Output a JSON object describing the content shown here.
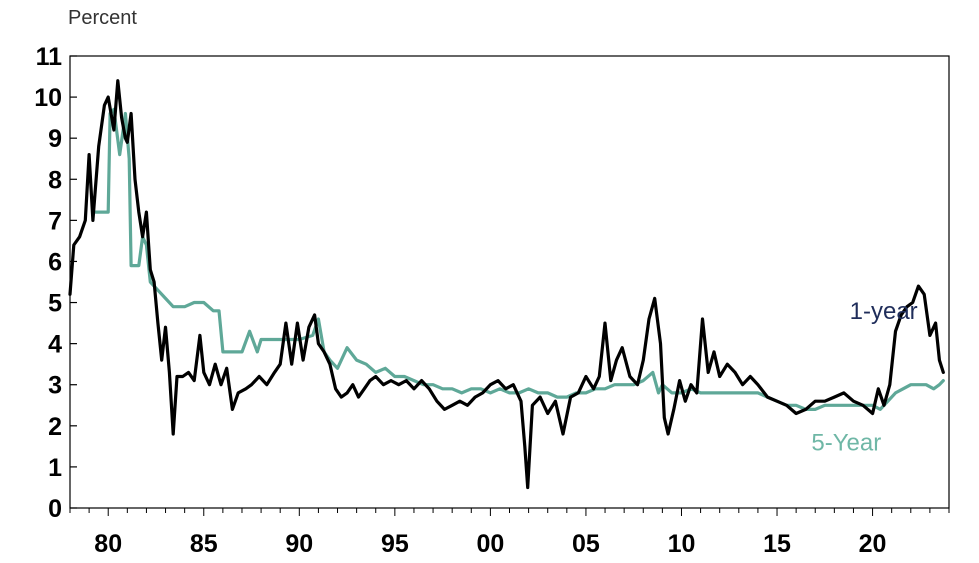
{
  "chart_data": {
    "type": "line",
    "title": "",
    "units_label": "Percent",
    "xlabel": "",
    "ylabel": "",
    "xlim": [
      1978,
      2024
    ],
    "ylim": [
      0,
      11
    ],
    "y_ticks": [
      0,
      1,
      2,
      3,
      4,
      5,
      6,
      7,
      8,
      9,
      10,
      11
    ],
    "x_ticks": [
      {
        "value": 1980,
        "label": "80"
      },
      {
        "value": 1985,
        "label": "85"
      },
      {
        "value": 1990,
        "label": "90"
      },
      {
        "value": 1995,
        "label": "95"
      },
      {
        "value": 2000,
        "label": "00"
      },
      {
        "value": 2005,
        "label": "05"
      },
      {
        "value": 2010,
        "label": "10"
      },
      {
        "value": 2015,
        "label": "15"
      },
      {
        "value": 2020,
        "label": "20"
      }
    ],
    "grid": false,
    "series": [
      {
        "name": "1-year",
        "color": "#000000",
        "label_color": "#1f2d5a",
        "points": [
          [
            1978.0,
            5.2
          ],
          [
            1978.2,
            6.4
          ],
          [
            1978.5,
            6.6
          ],
          [
            1978.8,
            7.0
          ],
          [
            1979.0,
            8.6
          ],
          [
            1979.2,
            7.0
          ],
          [
            1979.5,
            8.8
          ],
          [
            1979.8,
            9.8
          ],
          [
            1980.0,
            10.0
          ],
          [
            1980.3,
            9.2
          ],
          [
            1980.5,
            10.4
          ],
          [
            1980.7,
            9.5
          ],
          [
            1980.9,
            9.0
          ],
          [
            1981.0,
            8.9
          ],
          [
            1981.2,
            9.6
          ],
          [
            1981.4,
            8.0
          ],
          [
            1981.6,
            7.2
          ],
          [
            1981.8,
            6.6
          ],
          [
            1982.0,
            7.2
          ],
          [
            1982.2,
            5.8
          ],
          [
            1982.4,
            5.5
          ],
          [
            1982.6,
            4.5
          ],
          [
            1982.8,
            3.6
          ],
          [
            1983.0,
            4.4
          ],
          [
            1983.2,
            3.3
          ],
          [
            1983.4,
            1.8
          ],
          [
            1983.6,
            3.2
          ],
          [
            1983.9,
            3.2
          ],
          [
            1984.2,
            3.3
          ],
          [
            1984.5,
            3.1
          ],
          [
            1984.8,
            4.2
          ],
          [
            1985.0,
            3.3
          ],
          [
            1985.3,
            3.0
          ],
          [
            1985.6,
            3.5
          ],
          [
            1985.9,
            3.0
          ],
          [
            1986.2,
            3.4
          ],
          [
            1986.5,
            2.4
          ],
          [
            1986.8,
            2.8
          ],
          [
            1987.2,
            2.9
          ],
          [
            1987.5,
            3.0
          ],
          [
            1987.9,
            3.2
          ],
          [
            1988.3,
            3.0
          ],
          [
            1988.7,
            3.3
          ],
          [
            1989.0,
            3.5
          ],
          [
            1989.3,
            4.5
          ],
          [
            1989.6,
            3.5
          ],
          [
            1989.9,
            4.5
          ],
          [
            1990.2,
            3.6
          ],
          [
            1990.5,
            4.4
          ],
          [
            1990.8,
            4.7
          ],
          [
            1991.0,
            4.0
          ],
          [
            1991.3,
            3.8
          ],
          [
            1991.6,
            3.5
          ],
          [
            1991.9,
            2.9
          ],
          [
            1992.2,
            2.7
          ],
          [
            1992.5,
            2.8
          ],
          [
            1992.8,
            3.0
          ],
          [
            1993.1,
            2.7
          ],
          [
            1993.4,
            2.9
          ],
          [
            1993.7,
            3.1
          ],
          [
            1994.0,
            3.2
          ],
          [
            1994.4,
            3.0
          ],
          [
            1994.8,
            3.1
          ],
          [
            1995.2,
            3.0
          ],
          [
            1995.6,
            3.1
          ],
          [
            1996.0,
            2.9
          ],
          [
            1996.4,
            3.1
          ],
          [
            1996.8,
            2.9
          ],
          [
            1997.2,
            2.6
          ],
          [
            1997.6,
            2.4
          ],
          [
            1998.0,
            2.5
          ],
          [
            1998.4,
            2.6
          ],
          [
            1998.8,
            2.5
          ],
          [
            1999.2,
            2.7
          ],
          [
            1999.6,
            2.8
          ],
          [
            2000.0,
            3.0
          ],
          [
            2000.4,
            3.1
          ],
          [
            2000.8,
            2.9
          ],
          [
            2001.2,
            3.0
          ],
          [
            2001.6,
            2.6
          ],
          [
            2001.8,
            1.5
          ],
          [
            2001.95,
            0.5
          ],
          [
            2002.2,
            2.5
          ],
          [
            2002.6,
            2.7
          ],
          [
            2003.0,
            2.3
          ],
          [
            2003.4,
            2.6
          ],
          [
            2003.8,
            1.8
          ],
          [
            2004.2,
            2.7
          ],
          [
            2004.6,
            2.8
          ],
          [
            2005.0,
            3.2
          ],
          [
            2005.4,
            2.9
          ],
          [
            2005.7,
            3.2
          ],
          [
            2006.0,
            4.5
          ],
          [
            2006.3,
            3.1
          ],
          [
            2006.6,
            3.6
          ],
          [
            2006.9,
            3.9
          ],
          [
            2007.3,
            3.2
          ],
          [
            2007.7,
            3.0
          ],
          [
            2008.0,
            3.6
          ],
          [
            2008.3,
            4.6
          ],
          [
            2008.6,
            5.1
          ],
          [
            2008.9,
            4.0
          ],
          [
            2009.1,
            2.2
          ],
          [
            2009.3,
            1.8
          ],
          [
            2009.6,
            2.4
          ],
          [
            2009.9,
            3.1
          ],
          [
            2010.2,
            2.6
          ],
          [
            2010.5,
            3.0
          ],
          [
            2010.8,
            2.8
          ],
          [
            2011.1,
            4.6
          ],
          [
            2011.4,
            3.3
          ],
          [
            2011.7,
            3.8
          ],
          [
            2012.0,
            3.2
          ],
          [
            2012.4,
            3.5
          ],
          [
            2012.8,
            3.3
          ],
          [
            2013.2,
            3.0
          ],
          [
            2013.6,
            3.2
          ],
          [
            2014.0,
            3.0
          ],
          [
            2014.5,
            2.7
          ],
          [
            2015.0,
            2.6
          ],
          [
            2015.5,
            2.5
          ],
          [
            2016.0,
            2.3
          ],
          [
            2016.5,
            2.4
          ],
          [
            2017.0,
            2.6
          ],
          [
            2017.5,
            2.6
          ],
          [
            2018.0,
            2.7
          ],
          [
            2018.5,
            2.8
          ],
          [
            2019.0,
            2.6
          ],
          [
            2019.5,
            2.5
          ],
          [
            2020.0,
            2.3
          ],
          [
            2020.3,
            2.9
          ],
          [
            2020.6,
            2.5
          ],
          [
            2020.9,
            3.0
          ],
          [
            2021.2,
            4.3
          ],
          [
            2021.5,
            4.7
          ],
          [
            2021.8,
            4.9
          ],
          [
            2022.1,
            5.0
          ],
          [
            2022.4,
            5.4
          ],
          [
            2022.7,
            5.2
          ],
          [
            2023.0,
            4.2
          ],
          [
            2023.3,
            4.5
          ],
          [
            2023.5,
            3.6
          ],
          [
            2023.7,
            3.3
          ]
        ]
      },
      {
        "name": "5-Year",
        "color": "#5fa898",
        "label_color": "#6fb7a6",
        "points": [
          [
            1979.2,
            7.2
          ],
          [
            1980.0,
            7.2
          ],
          [
            1980.1,
            9.6
          ],
          [
            1980.3,
            9.7
          ],
          [
            1980.6,
            8.6
          ],
          [
            1980.9,
            9.6
          ],
          [
            1981.1,
            8.5
          ],
          [
            1981.2,
            5.9
          ],
          [
            1981.6,
            5.9
          ],
          [
            1981.8,
            6.6
          ],
          [
            1982.0,
            6.4
          ],
          [
            1982.2,
            5.5
          ],
          [
            1982.6,
            5.3
          ],
          [
            1983.0,
            5.1
          ],
          [
            1983.4,
            4.9
          ],
          [
            1984.0,
            4.9
          ],
          [
            1984.5,
            5.0
          ],
          [
            1985.0,
            5.0
          ],
          [
            1985.5,
            4.8
          ],
          [
            1985.8,
            4.8
          ],
          [
            1986.0,
            3.8
          ],
          [
            1987.0,
            3.8
          ],
          [
            1987.4,
            4.3
          ],
          [
            1987.8,
            3.8
          ],
          [
            1988.0,
            4.1
          ],
          [
            1989.0,
            4.1
          ],
          [
            1990.0,
            4.1
          ],
          [
            1990.7,
            4.2
          ],
          [
            1991.0,
            4.6
          ],
          [
            1991.3,
            3.8
          ],
          [
            1991.6,
            3.6
          ],
          [
            1992.0,
            3.4
          ],
          [
            1992.5,
            3.9
          ],
          [
            1993.0,
            3.6
          ],
          [
            1993.5,
            3.5
          ],
          [
            1994.0,
            3.3
          ],
          [
            1994.5,
            3.4
          ],
          [
            1995.0,
            3.2
          ],
          [
            1995.5,
            3.2
          ],
          [
            1996.0,
            3.1
          ],
          [
            1996.5,
            3.0
          ],
          [
            1997.0,
            3.0
          ],
          [
            1997.5,
            2.9
          ],
          [
            1998.0,
            2.9
          ],
          [
            1998.5,
            2.8
          ],
          [
            1999.0,
            2.9
          ],
          [
            1999.5,
            2.9
          ],
          [
            2000.0,
            2.8
          ],
          [
            2000.5,
            2.9
          ],
          [
            2001.0,
            2.8
          ],
          [
            2001.5,
            2.8
          ],
          [
            2002.0,
            2.9
          ],
          [
            2002.5,
            2.8
          ],
          [
            2003.0,
            2.8
          ],
          [
            2003.5,
            2.7
          ],
          [
            2004.0,
            2.7
          ],
          [
            2004.5,
            2.8
          ],
          [
            2005.0,
            2.8
          ],
          [
            2005.5,
            2.9
          ],
          [
            2006.0,
            2.9
          ],
          [
            2006.5,
            3.0
          ],
          [
            2007.0,
            3.0
          ],
          [
            2007.5,
            3.0
          ],
          [
            2008.0,
            3.1
          ],
          [
            2008.5,
            3.3
          ],
          [
            2008.8,
            2.8
          ],
          [
            2009.0,
            3.0
          ],
          [
            2009.5,
            2.8
          ],
          [
            2010.0,
            2.8
          ],
          [
            2010.5,
            2.9
          ],
          [
            2011.0,
            2.8
          ],
          [
            2011.5,
            2.8
          ],
          [
            2012.0,
            2.8
          ],
          [
            2012.5,
            2.8
          ],
          [
            2013.0,
            2.8
          ],
          [
            2013.5,
            2.8
          ],
          [
            2014.0,
            2.8
          ],
          [
            2014.5,
            2.7
          ],
          [
            2015.0,
            2.6
          ],
          [
            2015.5,
            2.5
          ],
          [
            2016.0,
            2.5
          ],
          [
            2016.5,
            2.4
          ],
          [
            2017.0,
            2.4
          ],
          [
            2017.5,
            2.5
          ],
          [
            2018.0,
            2.5
          ],
          [
            2018.5,
            2.5
          ],
          [
            2019.0,
            2.5
          ],
          [
            2019.5,
            2.5
          ],
          [
            2020.0,
            2.5
          ],
          [
            2020.4,
            2.4
          ],
          [
            2020.8,
            2.6
          ],
          [
            2021.2,
            2.8
          ],
          [
            2021.6,
            2.9
          ],
          [
            2022.0,
            3.0
          ],
          [
            2022.4,
            3.0
          ],
          [
            2022.8,
            3.0
          ],
          [
            2023.2,
            2.9
          ],
          [
            2023.5,
            3.0
          ],
          [
            2023.7,
            3.1
          ]
        ]
      }
    ],
    "annotations": [
      {
        "text": "1-year",
        "series": "1-year",
        "x": 2018.8,
        "y": 4.6
      },
      {
        "text": "5-Year",
        "series": "5-Year",
        "x": 2016.8,
        "y": 1.4
      }
    ]
  }
}
